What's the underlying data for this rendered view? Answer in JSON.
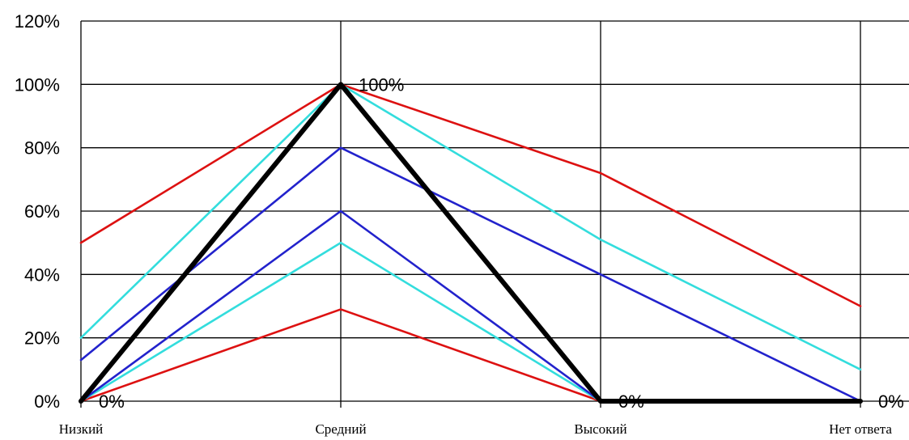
{
  "chart_data": {
    "type": "line",
    "categories": [
      "Низкий",
      "Средний",
      "Высокий",
      "Нет ответа"
    ],
    "ylim": [
      0,
      120
    ],
    "yticks": [
      "0%",
      "20%",
      "40%",
      "60%",
      "80%",
      "100%",
      "120%"
    ],
    "ytick_values": [
      0,
      20,
      40,
      60,
      80,
      100,
      120
    ],
    "grid": true,
    "series": [
      {
        "color": "#dd1111",
        "values": [
          50,
          100,
          72,
          30
        ]
      },
      {
        "color": "#dd1111",
        "values": [
          0,
          29,
          0,
          0
        ]
      },
      {
        "color": "#33dddd",
        "values": [
          20,
          100,
          51,
          10
        ]
      },
      {
        "color": "#33dddd",
        "values": [
          0,
          50,
          0,
          0
        ]
      },
      {
        "color": "#2222cc",
        "values": [
          13,
          80,
          40,
          0
        ]
      },
      {
        "color": "#2222cc",
        "values": [
          0,
          60,
          0,
          0
        ]
      },
      {
        "color": "#000000",
        "values": [
          0,
          100,
          0,
          0
        ],
        "emphasis": true
      }
    ],
    "data_labels": [
      {
        "text": "0%",
        "category": 0,
        "value": 0
      },
      {
        "text": "100%",
        "category": 1,
        "value": 100
      },
      {
        "text": "0%",
        "category": 2,
        "value": 0
      },
      {
        "text": "0%",
        "category": 3,
        "value": 0
      }
    ]
  }
}
